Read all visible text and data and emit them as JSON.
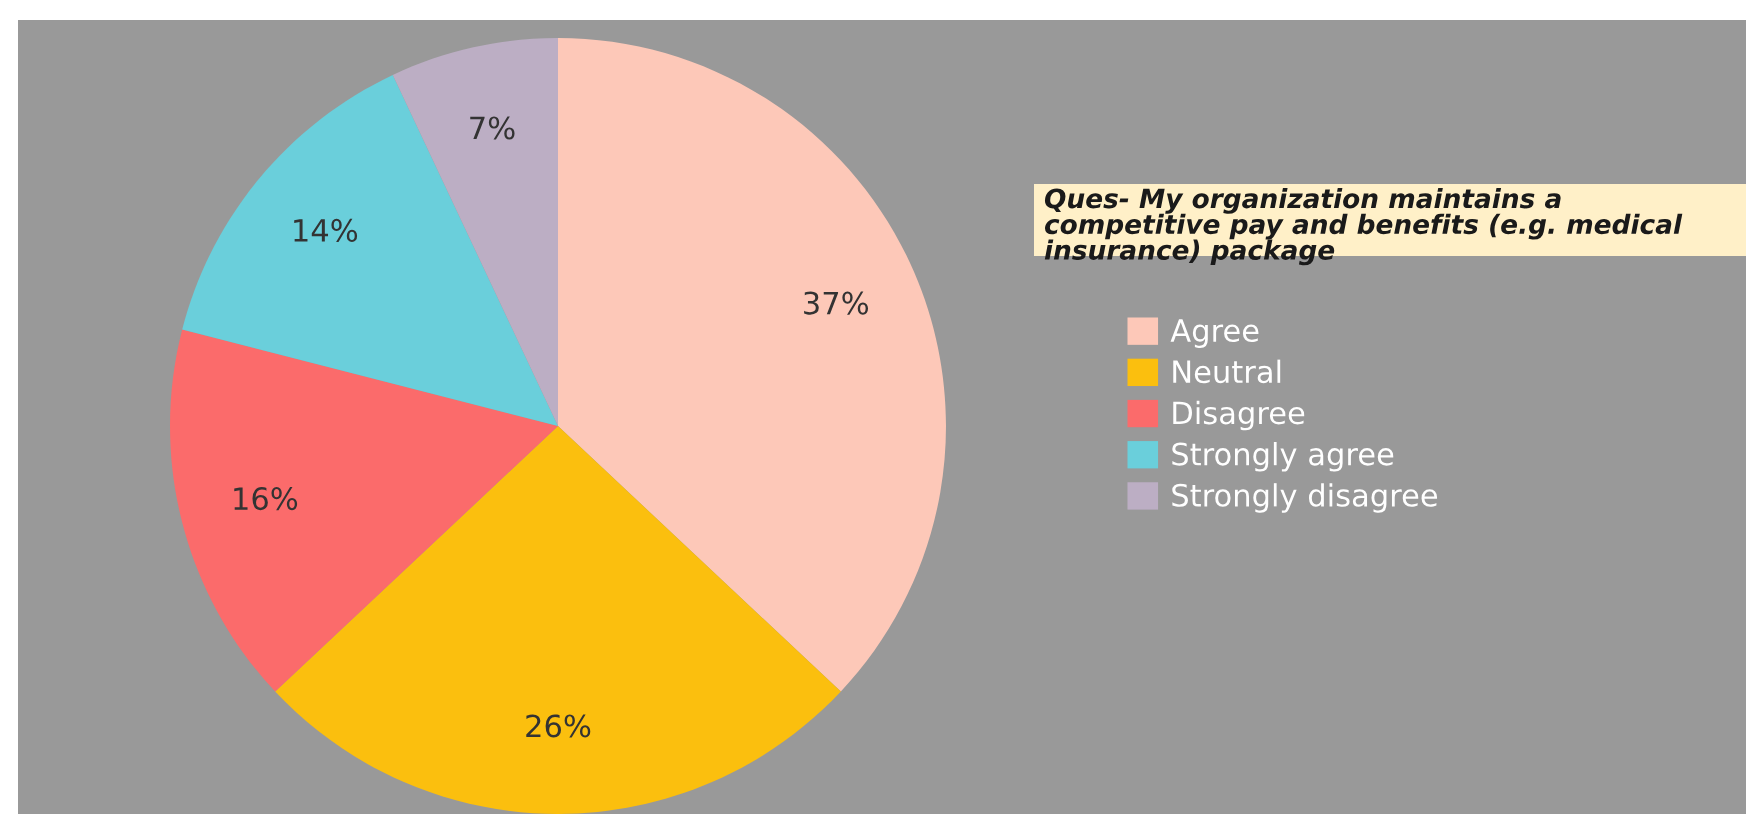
{
  "chart_data": {
    "type": "pie",
    "title": "Ques- My organization maintains a competitive pay and benefits (e.g. medical insurance) package",
    "categories": [
      "Agree",
      "Neutral",
      "Disagree",
      "Strongly agree",
      "Strongly disagree"
    ],
    "values": [
      37,
      26,
      16,
      14,
      7
    ],
    "colors": [
      "#fdc8b8",
      "#fbbf0e",
      "#fb6b6b",
      "#6acfdb",
      "#bcaec4"
    ],
    "value_labels": [
      "37%",
      "26%",
      "16%",
      "14%",
      "7%"
    ],
    "legend": "right"
  }
}
